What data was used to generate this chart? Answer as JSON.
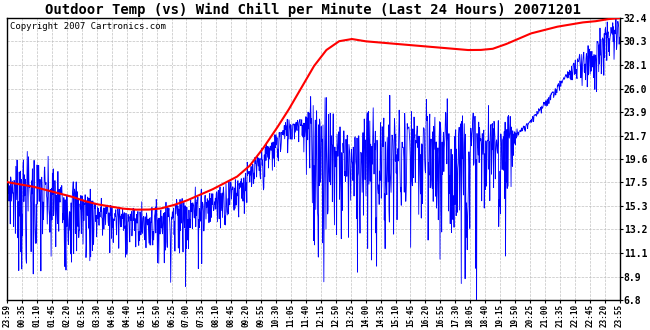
{
  "title": "Outdoor Temp (vs) Wind Chill per Minute (Last 24 Hours) 20071201",
  "copyright": "Copyright 2007 Cartronics.com",
  "ylim": [
    6.8,
    32.4
  ],
  "yticks": [
    6.8,
    8.9,
    11.1,
    13.2,
    15.3,
    17.5,
    19.6,
    21.7,
    23.9,
    26.0,
    28.1,
    30.3,
    32.4
  ],
  "background_color": "#ffffff",
  "grid_color": "#bbbbbb",
  "temp_color": "#ff0000",
  "windchill_color": "#0000ff",
  "title_fontsize": 10,
  "copyright_fontsize": 6.5,
  "temp_keypoints_x": [
    0,
    30,
    60,
    90,
    120,
    150,
    180,
    210,
    240,
    270,
    300,
    330,
    360,
    390,
    420,
    450,
    480,
    510,
    540,
    570,
    600,
    630,
    660,
    690,
    720,
    750,
    780,
    810,
    840,
    870,
    900,
    930,
    960,
    990,
    1020,
    1050,
    1080,
    1110,
    1140,
    1170,
    1200,
    1230,
    1260,
    1290,
    1320,
    1350,
    1380,
    1410,
    1439
  ],
  "temp_keypoints_y": [
    17.5,
    17.3,
    17.1,
    16.8,
    16.5,
    16.2,
    15.8,
    15.5,
    15.3,
    15.1,
    15.0,
    15.0,
    15.1,
    15.4,
    15.8,
    16.3,
    16.8,
    17.4,
    18.0,
    19.0,
    20.5,
    22.2,
    24.0,
    26.0,
    28.0,
    29.5,
    30.3,
    30.5,
    30.3,
    30.2,
    30.1,
    30.0,
    29.9,
    29.8,
    29.7,
    29.6,
    29.5,
    29.5,
    29.6,
    30.0,
    30.5,
    31.0,
    31.3,
    31.6,
    31.8,
    32.0,
    32.1,
    32.3,
    32.4
  ],
  "wc_base_x": [
    0,
    30,
    60,
    90,
    120,
    150,
    180,
    210,
    240,
    270,
    300,
    330,
    360,
    390,
    420,
    450,
    480,
    510,
    540,
    570,
    600,
    630,
    660,
    690,
    720,
    750,
    780,
    810,
    840,
    870,
    900,
    930,
    960,
    990,
    1020,
    1050,
    1080,
    1110,
    1140,
    1170,
    1200,
    1230,
    1260,
    1290,
    1320,
    1350,
    1380,
    1410,
    1439
  ],
  "wc_base_y": [
    17.2,
    17.0,
    16.8,
    16.4,
    16.0,
    15.6,
    15.2,
    14.8,
    14.5,
    14.2,
    14.0,
    14.0,
    14.2,
    14.5,
    14.9,
    15.3,
    15.8,
    16.3,
    17.0,
    18.0,
    19.5,
    21.0,
    22.5,
    23.0,
    21.5,
    20.5,
    20.2,
    20.0,
    20.0,
    20.1,
    20.2,
    20.3,
    20.3,
    20.3,
    20.3,
    20.4,
    20.5,
    20.6,
    20.8,
    21.2,
    22.0,
    23.0,
    24.5,
    26.0,
    27.5,
    28.5,
    29.5,
    30.5,
    31.5
  ],
  "noise_amp_x": [
    0,
    30,
    60,
    90,
    120,
    150,
    180,
    210,
    240,
    270,
    300,
    330,
    360,
    390,
    420,
    450,
    480,
    510,
    540,
    570,
    600,
    630,
    660,
    690,
    720,
    750,
    780,
    810,
    840,
    870,
    900,
    930,
    960,
    990,
    1020,
    1050,
    1080,
    1110,
    1140,
    1170,
    1200,
    1230,
    1260,
    1290,
    1320,
    1350,
    1380,
    1410,
    1439
  ],
  "noise_amp_y": [
    1.5,
    3.5,
    4.0,
    4.0,
    3.5,
    3.0,
    2.5,
    2.0,
    1.8,
    1.5,
    1.5,
    1.5,
    1.8,
    2.0,
    2.5,
    2.0,
    1.5,
    1.5,
    1.5,
    1.5,
    1.5,
    1.5,
    1.0,
    0.5,
    5.0,
    5.5,
    5.0,
    5.0,
    5.0,
    5.0,
    5.0,
    5.0,
    5.0,
    5.0,
    5.0,
    5.0,
    5.0,
    4.5,
    4.0,
    3.5,
    0.3,
    0.3,
    0.3,
    0.3,
    0.3,
    1.5,
    2.0,
    1.5,
    1.0
  ],
  "xtick_labels": [
    "23:59",
    "00:35",
    "01:10",
    "01:45",
    "02:20",
    "02:55",
    "03:30",
    "04:05",
    "04:40",
    "05:15",
    "05:50",
    "06:25",
    "07:00",
    "07:35",
    "08:10",
    "08:45",
    "09:20",
    "09:55",
    "10:30",
    "11:05",
    "11:40",
    "12:15",
    "12:50",
    "13:25",
    "14:00",
    "14:35",
    "15:10",
    "15:45",
    "16:20",
    "16:55",
    "17:30",
    "18:05",
    "18:40",
    "19:15",
    "19:50",
    "20:25",
    "21:00",
    "21:35",
    "22:10",
    "22:45",
    "23:20",
    "23:55"
  ]
}
